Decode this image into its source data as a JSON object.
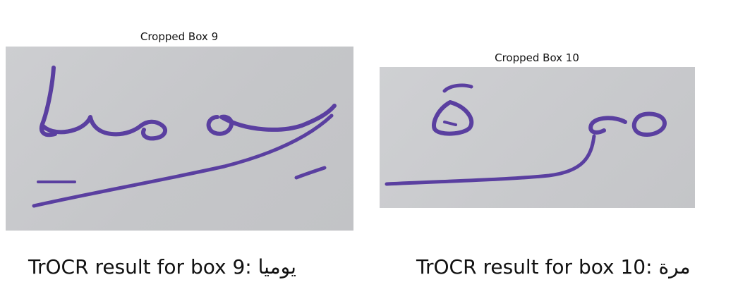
{
  "panels": [
    {
      "title": "Cropped Box 9",
      "result_text": "TrOCR result for box 9: يوميا"
    },
    {
      "title": "Cropped Box 10",
      "result_text": "TrOCR result for box 10: مرة"
    }
  ],
  "colors": {
    "ink": "#5a3fa0",
    "paper": "#c9cacd",
    "background": "#ffffff"
  }
}
